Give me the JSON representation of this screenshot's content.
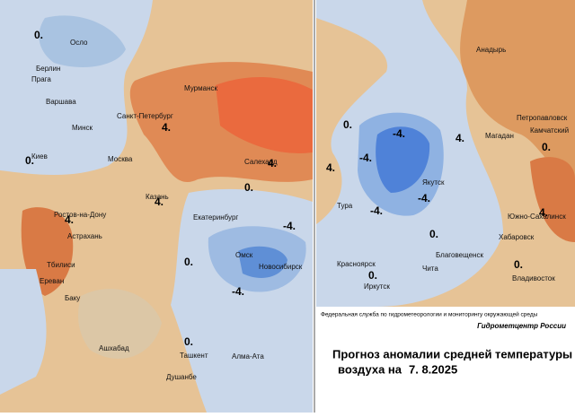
{
  "header": {
    "agency": "Федеральная служба по гидрометеорологии и мониторингу окружающей среды",
    "brand": "Гидрометцентр России"
  },
  "title": {
    "line1": "Прогноз аномалии средней температуры",
    "line2": "воздуха на",
    "date": "7. 8.2025"
  },
  "left_map": {
    "cities": [
      "Осло",
      "Берлин",
      "Прага",
      "Варшава",
      "Минск",
      "Киев",
      "Москва",
      "Санкт-Петербург",
      "Мурманск",
      "Салехард",
      "Казань",
      "Ростов-на-Дону",
      "Астрахань",
      "Екатеринбург",
      "Омск",
      "Новосибирск",
      "Тбилиси",
      "Ереван",
      "Баку",
      "Ашхабад",
      "Ташкент",
      "Алма-Ата",
      "Душанбе"
    ],
    "contour_labels": [
      "0.",
      "0.",
      "4.",
      "4.",
      "4.",
      "4.",
      "0.",
      "-4.",
      "-4.",
      "0.",
      "0."
    ]
  },
  "right_map": {
    "cities": [
      "Анадырь",
      "Петропавловск",
      "Камчатский",
      "Магадан",
      "Якутск",
      "Тура",
      "Красноярск",
      "Иркутск",
      "Чита",
      "Благовещенск",
      "Хабаровск",
      "Южно-Сахалинск",
      "Владивосток"
    ],
    "contour_labels": [
      "4.",
      "-4.",
      "-4.",
      "-4.",
      "-4.",
      "0.",
      "0.",
      "0.",
      "4.",
      "0.",
      "4.",
      "0."
    ]
  }
}
